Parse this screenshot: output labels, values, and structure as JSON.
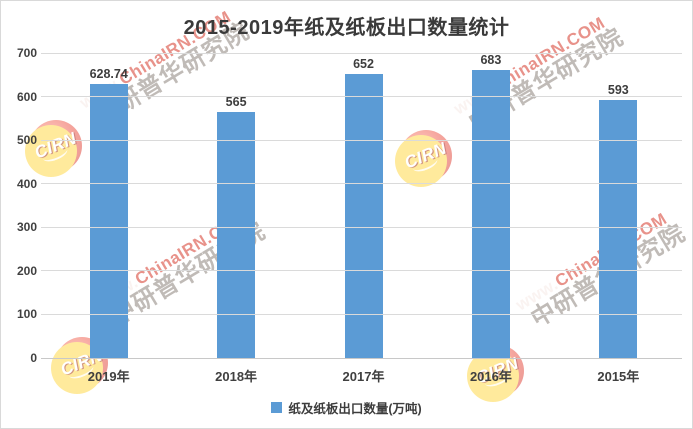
{
  "chart_data": {
    "type": "bar",
    "title": "2015-2019年纸及纸板出口数量统计",
    "categories": [
      "2019年",
      "2018年",
      "2017年",
      "2016年",
      "2015年"
    ],
    "series": [
      {
        "name": "纸及纸板出口数量(万吨)",
        "values": [
          628.74,
          565,
          652,
          683,
          593
        ]
      }
    ],
    "value_labels": [
      "628.74",
      "565",
      "652",
      "683",
      "593"
    ],
    "xlabel": "",
    "ylabel": "",
    "ylim": [
      0,
      700
    ],
    "yticks": [
      0,
      100,
      200,
      300,
      400,
      500,
      600,
      700
    ],
    "grid": true,
    "legend_position": "bottom",
    "bar_color": "#5B9BD5"
  },
  "legend": {
    "items": [
      {
        "label": "纸及纸板出口数量(万吨)",
        "color": "#5B9BD5"
      }
    ]
  },
  "colors": {
    "bar": "#5B9BD5",
    "text": "#404040",
    "gridline": "#DADADA",
    "frame_border": "#D9D9D9",
    "watermark_red": "#D9493C",
    "watermark_gray": "#8C847C",
    "logo_red": "#E93E2D",
    "logo_yellow": "#FFD94D"
  },
  "watermark": {
    "logo_text": "CIRN",
    "url_prefix": "www.",
    "url_domain": "ChinaIRN.COM",
    "company": "中研普华研究院"
  }
}
